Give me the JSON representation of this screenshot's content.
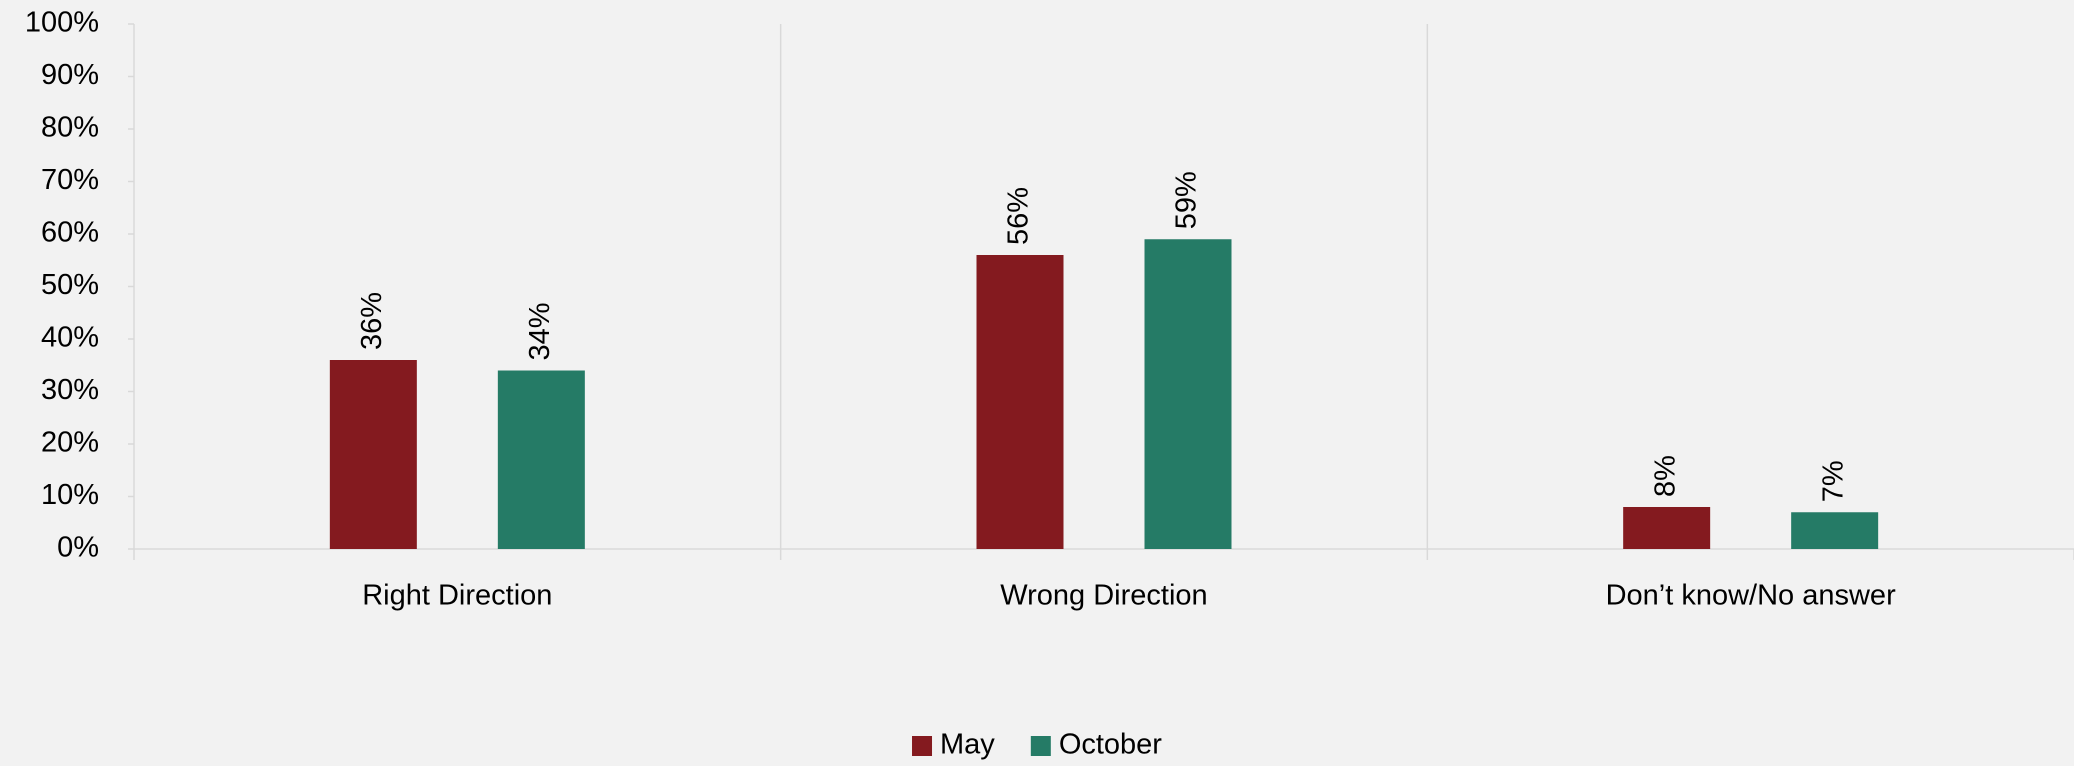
{
  "chart_data": {
    "type": "bar",
    "categories": [
      "Right Direction",
      "Wrong Direction",
      "Don’t know/No answer"
    ],
    "series": [
      {
        "name": "May",
        "color": "#841a1f",
        "values": [
          36,
          56,
          8
        ],
        "value_labels": [
          "36%",
          "56%",
          "8%"
        ]
      },
      {
        "name": "October",
        "color": "#257b66",
        "values": [
          34,
          59,
          7
        ],
        "value_labels": [
          "34%",
          "59%",
          "7%"
        ]
      }
    ],
    "ylim": [
      0,
      100
    ],
    "yticks": [
      {
        "value": 0,
        "label": "0%"
      },
      {
        "value": 10,
        "label": "10%"
      },
      {
        "value": 20,
        "label": "20%"
      },
      {
        "value": 30,
        "label": "30%"
      },
      {
        "value": 40,
        "label": "40%"
      },
      {
        "value": 50,
        "label": "50%"
      },
      {
        "value": 60,
        "label": "60%"
      },
      {
        "value": 70,
        "label": "70%"
      },
      {
        "value": 80,
        "label": "80%"
      },
      {
        "value": 90,
        "label": "90%"
      },
      {
        "value": 100,
        "label": "100%"
      }
    ],
    "legend": "bottom"
  }
}
